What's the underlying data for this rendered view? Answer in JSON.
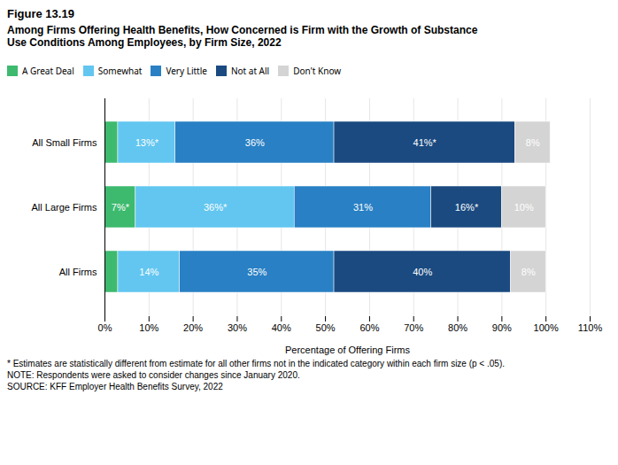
{
  "chart_data": {
    "type": "bar",
    "orientation": "horizontal",
    "stacked": true,
    "title": "Figure 13.19",
    "subtitle": "Among Firms Offering Health Benefits, How Concerned is Firm with the Growth of Substance\nUse Conditions Among Employees, by Firm Size, 2022",
    "categories": [
      "All Small Firms",
      "All Large Firms",
      "All Firms"
    ],
    "series": [
      {
        "name": "A Great Deal",
        "color": "#3dba6e",
        "values": [
          3,
          7,
          3
        ],
        "value_labels": [
          null,
          "7%*",
          null
        ]
      },
      {
        "name": "Somewhat",
        "color": "#62c6f0",
        "values": [
          13,
          36,
          14
        ],
        "value_labels": [
          "13%*",
          "36%*",
          "14%"
        ]
      },
      {
        "name": "Very Little",
        "color": "#2980c4",
        "values": [
          36,
          31,
          35
        ],
        "value_labels": [
          "36%",
          "31%",
          "35%"
        ]
      },
      {
        "name": "Not at All",
        "color": "#1a4a80",
        "values": [
          41,
          16,
          40
        ],
        "value_labels": [
          "41%*",
          "16%*",
          "40%"
        ]
      },
      {
        "name": "Don't Know",
        "color": "#d4d4d4",
        "values": [
          8,
          10,
          8
        ],
        "value_labels": [
          "8%",
          "10%",
          "8%"
        ]
      }
    ],
    "xlabel": "Percentage of Offering Firms",
    "xlim": [
      0,
      110
    ],
    "xticks": [
      {
        "value": 0,
        "label": "0%"
      },
      {
        "value": 10,
        "label": "10%"
      },
      {
        "value": 20,
        "label": "20%"
      },
      {
        "value": 30,
        "label": "30%"
      },
      {
        "value": 40,
        "label": "40%"
      },
      {
        "value": 50,
        "label": "50%"
      },
      {
        "value": 60,
        "label": "60%"
      },
      {
        "value": 70,
        "label": "70%"
      },
      {
        "value": 80,
        "label": "80%"
      },
      {
        "value": 90,
        "label": "90%"
      },
      {
        "value": 100,
        "label": "100%"
      },
      {
        "value": 110,
        "label": "110%"
      }
    ],
    "grid": true,
    "legend": "top",
    "data_labels": true,
    "annotations": [
      "* Estimates are statistically different from estimate for all other firms not in the indicated category within each firm size (p < .05).",
      "NOTE: Respondents were asked to consider changes since January 2020.",
      "SOURCE: KFF Employer Health Benefits Survey, 2022"
    ]
  }
}
